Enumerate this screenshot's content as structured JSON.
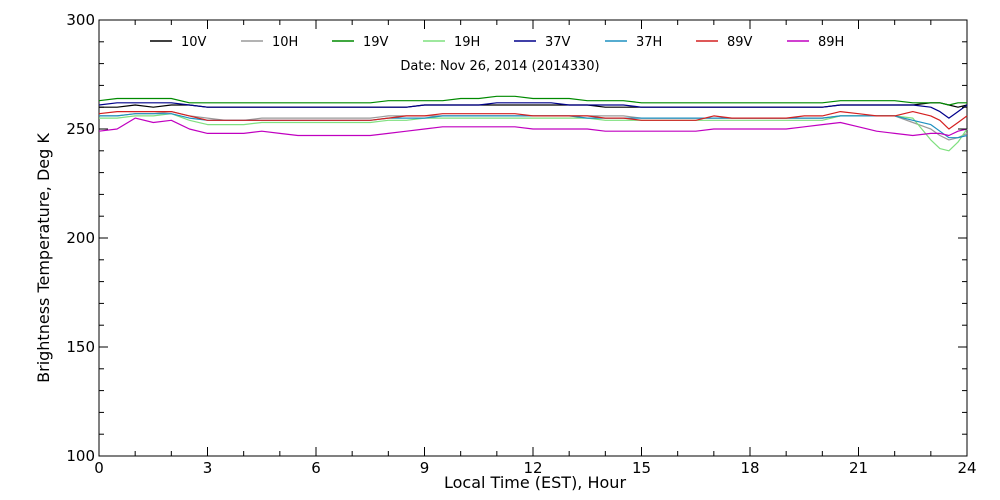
{
  "chart_data": {
    "type": "line",
    "title": "",
    "subtitle": "Date: Nov 26, 2014 (2014330)",
    "xlabel": "Local Time (EST), Hour",
    "ylabel": "Brightness Temperature, Deg K",
    "xlim": [
      0,
      24
    ],
    "ylim": [
      100,
      300
    ],
    "xticks": [
      0,
      3,
      6,
      9,
      12,
      15,
      18,
      21,
      24
    ],
    "yticks": [
      100,
      150,
      200,
      250,
      300
    ],
    "grid": false,
    "legend": {
      "placement": "top",
      "orientation": "horizontal"
    },
    "x": [
      0,
      0.5,
      1,
      1.5,
      2,
      2.5,
      3,
      3.5,
      4,
      4.5,
      5,
      5.5,
      6,
      6.5,
      7,
      7.5,
      8,
      8.5,
      9,
      9.5,
      10,
      10.5,
      11,
      11.5,
      12,
      12.5,
      13,
      13.5,
      14,
      14.5,
      15,
      15.5,
      16,
      16.5,
      17,
      17.5,
      18,
      18.5,
      19,
      19.5,
      20,
      20.5,
      21,
      21.5,
      22,
      22.5,
      23,
      23.25,
      23.5,
      23.75,
      24
    ],
    "series": [
      {
        "name": "10V",
        "color": "#000000",
        "values": [
          260,
          260,
          261,
          260,
          261,
          261,
          260,
          260,
          260,
          260,
          260,
          260,
          260,
          260,
          260,
          260,
          260,
          260,
          261,
          261,
          261,
          261,
          261,
          261,
          261,
          261,
          261,
          261,
          260,
          260,
          260,
          260,
          260,
          260,
          260,
          260,
          260,
          260,
          260,
          260,
          260,
          261,
          261,
          261,
          261,
          261,
          262,
          262,
          261,
          260,
          261
        ]
      },
      {
        "name": "10H",
        "color": "#9a9a9a",
        "values": [
          256,
          256,
          257,
          257,
          258,
          256,
          255,
          254,
          254,
          255,
          255,
          255,
          255,
          255,
          255,
          255,
          256,
          256,
          256,
          256,
          256,
          256,
          256,
          256,
          256,
          256,
          256,
          256,
          256,
          256,
          255,
          255,
          255,
          255,
          255,
          255,
          255,
          255,
          255,
          255,
          255,
          256,
          256,
          256,
          256,
          253,
          250,
          247,
          245,
          246,
          248
        ]
      },
      {
        "name": "19V",
        "color": "#008a00",
        "values": [
          263,
          264,
          264,
          264,
          264,
          262,
          262,
          262,
          262,
          262,
          262,
          262,
          262,
          262,
          262,
          262,
          263,
          263,
          263,
          263,
          264,
          264,
          265,
          265,
          264,
          264,
          264,
          263,
          263,
          263,
          262,
          262,
          262,
          262,
          262,
          262,
          262,
          262,
          262,
          262,
          262,
          263,
          263,
          263,
          263,
          262,
          262,
          262,
          261,
          262,
          262
        ]
      },
      {
        "name": "19H",
        "color": "#7fe07f",
        "values": [
          255,
          255,
          256,
          256,
          257,
          254,
          252,
          252,
          252,
          253,
          253,
          253,
          253,
          253,
          253,
          253,
          254,
          254,
          255,
          255,
          255,
          255,
          255,
          255,
          255,
          255,
          255,
          255,
          254,
          254,
          254,
          254,
          254,
          254,
          254,
          254,
          254,
          254,
          254,
          254,
          254,
          256,
          256,
          256,
          256,
          255,
          245,
          241,
          240,
          244,
          250
        ]
      },
      {
        "name": "37V",
        "color": "#00008b",
        "values": [
          261,
          262,
          262,
          262,
          262,
          261,
          260,
          260,
          260,
          260,
          260,
          260,
          260,
          260,
          260,
          260,
          260,
          260,
          261,
          261,
          261,
          261,
          262,
          262,
          262,
          262,
          261,
          261,
          261,
          261,
          260,
          260,
          260,
          260,
          260,
          260,
          260,
          260,
          260,
          260,
          260,
          261,
          261,
          261,
          261,
          261,
          260,
          258,
          255,
          258,
          261
        ]
      },
      {
        "name": "37H",
        "color": "#1e90c0",
        "values": [
          256,
          256,
          257,
          257,
          257,
          255,
          254,
          254,
          254,
          254,
          254,
          254,
          254,
          254,
          254,
          254,
          255,
          255,
          255,
          256,
          256,
          256,
          256,
          256,
          256,
          256,
          256,
          255,
          255,
          255,
          255,
          255,
          255,
          255,
          255,
          255,
          255,
          255,
          255,
          255,
          255,
          256,
          256,
          256,
          256,
          254,
          252,
          249,
          246,
          246,
          247
        ]
      },
      {
        "name": "89V",
        "color": "#d42020",
        "values": [
          257,
          258,
          258,
          258,
          258,
          256,
          254,
          254,
          254,
          254,
          254,
          254,
          254,
          254,
          254,
          254,
          255,
          256,
          256,
          257,
          257,
          257,
          257,
          257,
          256,
          256,
          256,
          256,
          255,
          255,
          254,
          254,
          254,
          254,
          256,
          255,
          255,
          255,
          255,
          256,
          256,
          258,
          257,
          256,
          256,
          258,
          256,
          254,
          250,
          253,
          256
        ]
      },
      {
        "name": "89H",
        "color": "#c000c0",
        "values": [
          249,
          250,
          255,
          253,
          254,
          250,
          248,
          248,
          248,
          249,
          248,
          247,
          247,
          247,
          247,
          247,
          248,
          249,
          250,
          251,
          251,
          251,
          251,
          251,
          250,
          250,
          250,
          250,
          249,
          249,
          249,
          249,
          249,
          249,
          250,
          250,
          250,
          250,
          250,
          251,
          252,
          253,
          251,
          249,
          248,
          247,
          248,
          248,
          247,
          249,
          250
        ]
      }
    ]
  }
}
